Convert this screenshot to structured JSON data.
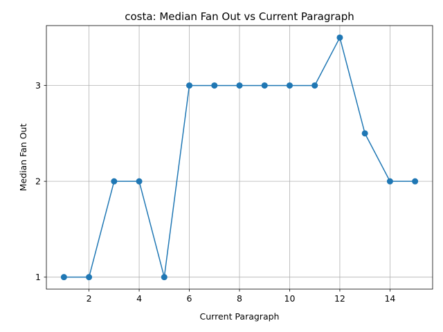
{
  "chart_data": {
    "type": "line",
    "title": "costa: Median Fan Out vs Current Paragraph",
    "xlabel": "Current Paragraph",
    "ylabel": "Median Fan Out",
    "x": [
      1,
      2,
      3,
      4,
      5,
      6,
      7,
      8,
      9,
      10,
      11,
      12,
      13,
      14,
      15
    ],
    "series": [
      {
        "values": [
          1,
          1,
          2,
          2,
          1,
          3,
          3,
          3,
          3,
          3,
          3,
          3.5,
          2.5,
          2,
          2
        ],
        "color": "#1f77b4"
      }
    ],
    "xticks": [
      2,
      4,
      6,
      8,
      10,
      12,
      14
    ],
    "yticks": [
      1,
      2,
      3
    ],
    "xlim": [
      0.3,
      15.7
    ],
    "ylim": [
      0.875,
      3.625
    ],
    "grid": true,
    "marker": "circle"
  }
}
